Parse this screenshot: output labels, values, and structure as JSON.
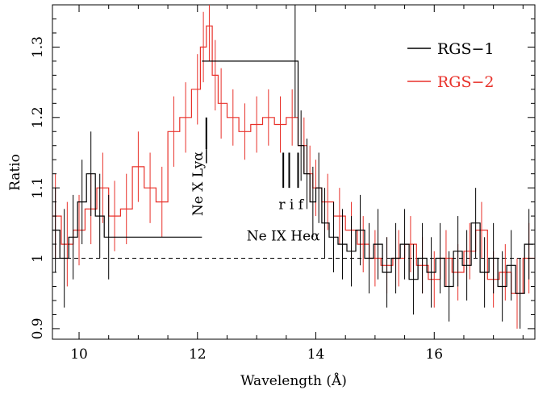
{
  "chart_data": {
    "type": "line",
    "title": "",
    "xlabel": "Wavelength (Å)",
    "ylabel": "Ratio",
    "xlim": [
      9.55,
      17.7
    ],
    "ylim": [
      0.885,
      1.36
    ],
    "x_ticks": [
      10,
      12,
      14,
      16
    ],
    "x_tick_labels": [
      "10",
      "12",
      "14",
      "16"
    ],
    "y_ticks": [
      0.9,
      1.0,
      1.1,
      1.2,
      1.3
    ],
    "y_tick_labels": [
      "0.9",
      "1",
      "1.1",
      "1.2",
      "1.3"
    ],
    "reference_line": {
      "y": 1.0,
      "style": "dashed"
    },
    "legend": {
      "placement": "top-right"
    },
    "series": [
      {
        "name": "RGS−1",
        "color": "#000000",
        "x": [
          9.6,
          9.75,
          9.9,
          10.05,
          10.2,
          10.35,
          10.5,
          13.65,
          13.75,
          13.85,
          13.95,
          14.05,
          14.15,
          14.3,
          14.45,
          14.6,
          14.75,
          14.9,
          15.05,
          15.2,
          15.35,
          15.5,
          15.65,
          15.8,
          15.95,
          16.1,
          16.25,
          16.4,
          16.55,
          16.7,
          16.85,
          17.0,
          17.15,
          17.3,
          17.45,
          17.6
        ],
        "y": [
          1.04,
          1.0,
          1.03,
          1.08,
          1.12,
          1.06,
          1.03,
          1.28,
          1.16,
          1.12,
          1.08,
          1.1,
          1.05,
          1.03,
          1.02,
          1.01,
          1.04,
          1.0,
          1.02,
          0.98,
          1.0,
          1.02,
          0.97,
          1.0,
          0.98,
          1.0,
          0.96,
          1.01,
          0.99,
          1.05,
          0.98,
          1.0,
          0.96,
          0.99,
          0.95,
          1.02
        ],
        "err": [
          0.06,
          0.07,
          0.06,
          0.06,
          0.06,
          0.06,
          0.06,
          0.08,
          0.05,
          0.05,
          0.05,
          0.05,
          0.05,
          0.05,
          0.05,
          0.05,
          0.05,
          0.05,
          0.05,
          0.05,
          0.05,
          0.05,
          0.05,
          0.05,
          0.05,
          0.05,
          0.05,
          0.05,
          0.05,
          0.05,
          0.05,
          0.05,
          0.05,
          0.05,
          0.05,
          0.05
        ]
      },
      {
        "name": "RGS−2",
        "color": "#e8312a",
        "x": [
          9.6,
          9.8,
          10.0,
          10.2,
          10.4,
          10.6,
          10.8,
          11.0,
          11.2,
          11.4,
          11.6,
          11.8,
          12.0,
          12.1,
          12.2,
          12.3,
          12.4,
          12.6,
          12.8,
          13.0,
          13.2,
          13.4,
          13.6,
          13.8,
          13.9,
          14.0,
          14.2,
          14.4,
          14.6,
          14.8,
          15.0,
          15.2,
          15.4,
          15.6,
          15.8,
          16.0,
          16.2,
          16.4,
          16.6,
          16.8,
          17.0,
          17.2,
          17.4,
          17.6
        ],
        "y": [
          1.06,
          1.02,
          1.04,
          1.07,
          1.1,
          1.06,
          1.07,
          1.13,
          1.1,
          1.08,
          1.18,
          1.2,
          1.24,
          1.3,
          1.33,
          1.26,
          1.22,
          1.2,
          1.18,
          1.19,
          1.2,
          1.19,
          1.2,
          1.16,
          1.12,
          1.1,
          1.08,
          1.06,
          1.04,
          1.02,
          1.0,
          0.99,
          1.0,
          1.02,
          0.99,
          0.97,
          1.0,
          0.98,
          1.01,
          1.04,
          0.97,
          0.98,
          0.95,
          1.0
        ],
        "err": [
          0.06,
          0.06,
          0.05,
          0.05,
          0.05,
          0.05,
          0.05,
          0.05,
          0.05,
          0.05,
          0.05,
          0.05,
          0.05,
          0.05,
          0.05,
          0.05,
          0.05,
          0.04,
          0.04,
          0.04,
          0.04,
          0.04,
          0.04,
          0.04,
          0.04,
          0.04,
          0.04,
          0.04,
          0.04,
          0.04,
          0.04,
          0.04,
          0.04,
          0.04,
          0.04,
          0.04,
          0.04,
          0.04,
          0.04,
          0.04,
          0.04,
          0.04,
          0.05,
          0.05
        ]
      }
    ],
    "annotations": [
      {
        "id": "ne-x-lya",
        "text": "Ne X Lyα",
        "markers": [
          {
            "x": 12.15,
            "y0": 1.155,
            "y1": 1.2
          }
        ]
      },
      {
        "id": "ne-ix-hea",
        "text": "Ne IX Heα",
        "sublabel": "r i f",
        "markers": [
          {
            "x": 13.45,
            "y0": 1.1,
            "y1": 1.15
          },
          {
            "x": 13.55,
            "y0": 1.1,
            "y1": 1.15
          },
          {
            "x": 13.7,
            "y0": 1.1,
            "y1": 1.15
          }
        ]
      }
    ]
  }
}
